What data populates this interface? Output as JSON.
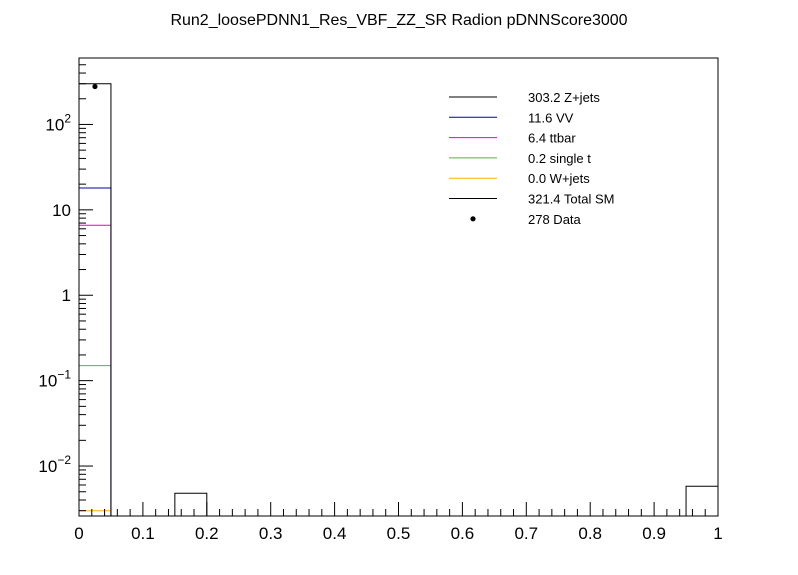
{
  "chart_data": {
    "type": "bar",
    "title": "Run2_loosePDNN1_Res_VBF_ZZ_SR Radion  pDNNScore3000",
    "xlabel": "",
    "ylabel": "",
    "y_scale": "log",
    "xlim": [
      0,
      1
    ],
    "ylim": [
      0.0026,
      600
    ],
    "grid": false,
    "legend_position": "top-right",
    "x_tick_labels": [
      "0",
      "0.1",
      "0.2",
      "0.3",
      "0.4",
      "0.5",
      "0.6",
      "0.7",
      "0.8",
      "0.9",
      "1"
    ],
    "x_tick_values": [
      0,
      0.1,
      0.2,
      0.3,
      0.4,
      0.5,
      0.6,
      0.7,
      0.8,
      0.9,
      1
    ],
    "y_tick_labels": [
      {
        "base": "10",
        "exp": "2",
        "value": 100
      },
      {
        "base": "10",
        "exp": "",
        "value": 10
      },
      {
        "base": "1",
        "exp": "",
        "value": 1
      },
      {
        "base": "10",
        "exp": "−1",
        "value": 0.1
      },
      {
        "base": "10",
        "exp": "−2",
        "value": 0.01
      }
    ],
    "bin_width": 0.05,
    "stack_levels": [
      {
        "name": "W+jets",
        "color": "#ffb000",
        "values": [
          {
            "x0": 0,
            "x1": 0.05,
            "y": 0.003
          }
        ]
      },
      {
        "name": "single t",
        "color": "#44bb44",
        "values": [
          {
            "x0": 0,
            "x1": 0.05,
            "y": 0.15
          }
        ]
      },
      {
        "name": "ttbar",
        "color": "#dd00dd",
        "values": [
          {
            "x0": 0,
            "x1": 0.05,
            "y": 6.6
          }
        ]
      },
      {
        "name": "VV",
        "color": "#0000aa",
        "values": [
          {
            "x0": 0,
            "x1": 0.05,
            "y": 18
          }
        ]
      },
      {
        "name": "Z+jets",
        "color": "#000000",
        "values": [
          {
            "x0": 0,
            "x1": 0.05,
            "y": 300
          },
          {
            "x0": 0.15,
            "x1": 0.2,
            "y": 0.0048
          },
          {
            "x0": 0.95,
            "x1": 1.0,
            "y": 0.0058
          }
        ]
      }
    ],
    "data_points": [
      {
        "x": 0.025,
        "y": 278
      }
    ],
    "legend": [
      {
        "text": "303.2 Z+jets",
        "color": "#000000",
        "type": "line"
      },
      {
        "text": " 11.6 VV",
        "color": "#0000aa",
        "type": "line"
      },
      {
        "text": "  6.4 ttbar",
        "color": "#dd00dd",
        "type": "line"
      },
      {
        "text": "  0.2 single t",
        "color": "#44bb44",
        "type": "line"
      },
      {
        "text": "  0.0 W+jets",
        "color": "#ffb000",
        "type": "line"
      },
      {
        "text": "321.4 Total SM",
        "color": "#000000",
        "type": "line"
      },
      {
        "text": "  278 Data",
        "color": "#000000",
        "type": "marker"
      }
    ]
  }
}
